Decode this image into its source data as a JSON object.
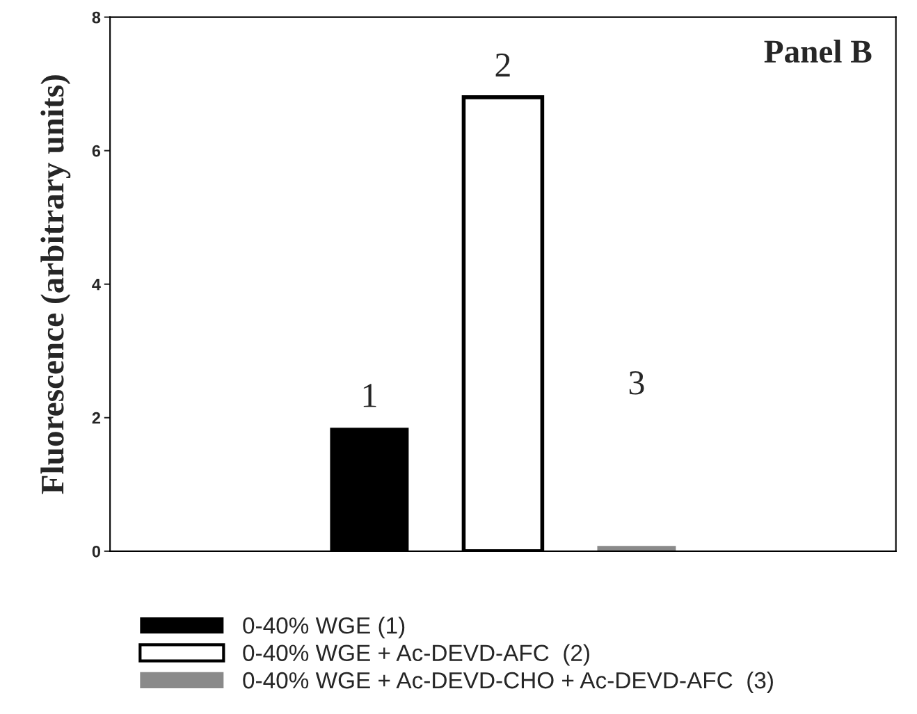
{
  "chart_data": {
    "type": "bar",
    "ylabel": "Fluorescence (arbitrary units)",
    "categories": [
      null
    ],
    "series": [
      {
        "name": "0-40% WGE (1)",
        "color": "#000000",
        "values": [
          1.85
        ]
      },
      {
        "name": "0-40% WGE + Ac-DEVD-AFC  (2)",
        "color": "#ffffff",
        "values": [
          6.8
        ]
      },
      {
        "name": "0-40% WGE + Ac-DEVD-CHO + Ac-DEVD-AFC  (3)",
        "color": "#8a8a8a",
        "values": [
          0.08
        ]
      }
    ],
    "annotations": [
      "1",
      "2",
      "3",
      "Panel B"
    ],
    "ylim": [
      0,
      8
    ],
    "yticks": [
      0,
      2,
      4,
      6,
      8
    ],
    "grid": false,
    "legend": "bottom"
  }
}
